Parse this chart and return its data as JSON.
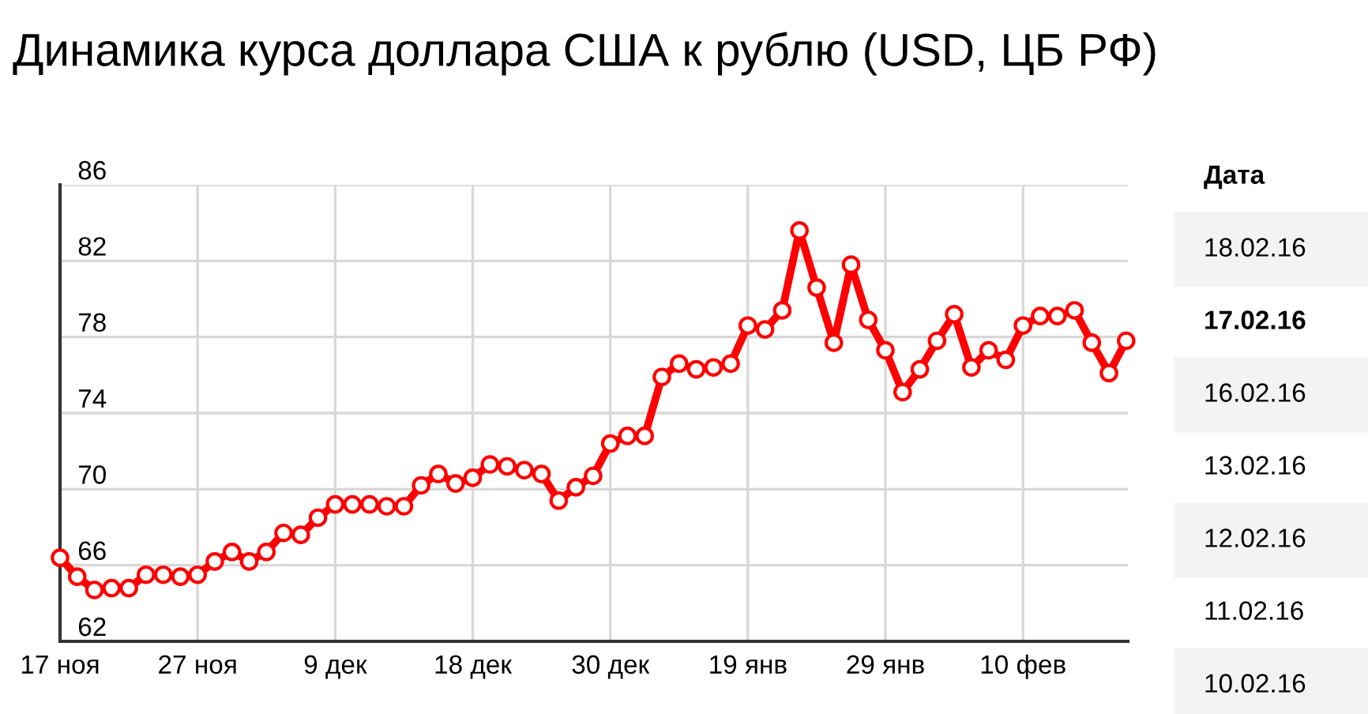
{
  "chart_data": {
    "type": "line",
    "title": "Динамика курса доллара США к рублю (USD, ЦБ РФ)",
    "categories": [
      "17 ноя",
      null,
      null,
      null,
      null,
      null,
      null,
      null,
      "27 ноя",
      null,
      null,
      null,
      null,
      null,
      null,
      null,
      "9 дек",
      null,
      null,
      null,
      null,
      null,
      null,
      null,
      "18 дек",
      null,
      null,
      null,
      null,
      null,
      null,
      null,
      "30 дек",
      null,
      null,
      null,
      null,
      null,
      null,
      null,
      "19 янв",
      null,
      null,
      null,
      null,
      null,
      null,
      null,
      "29 янв",
      null,
      null,
      null,
      null,
      null,
      null,
      null,
      "10 фев",
      null,
      null,
      null,
      null,
      null,
      null
    ],
    "series": [
      {
        "color": "#ff0000",
        "values": [
          66.4,
          65.4,
          64.7,
          64.8,
          64.8,
          65.5,
          65.5,
          65.4,
          65.5,
          66.2,
          66.7,
          66.2,
          66.7,
          67.7,
          67.6,
          68.5,
          69.2,
          69.2,
          69.2,
          69.1,
          69.1,
          70.2,
          70.8,
          70.3,
          70.6,
          71.3,
          71.2,
          71.0,
          70.8,
          69.4,
          70.1,
          70.7,
          72.4,
          72.8,
          72.8,
          75.9,
          76.6,
          76.3,
          76.4,
          76.6,
          78.6,
          78.4,
          79.4,
          83.6,
          80.6,
          77.7,
          81.8,
          78.9,
          77.3,
          75.1,
          76.3,
          77.8,
          79.2,
          76.4,
          77.3,
          76.8,
          78.6,
          79.1,
          79.1,
          79.4,
          77.7,
          76.1,
          77.8
        ]
      }
    ],
    "ylim": [
      62,
      86
    ],
    "yticks": [
      62,
      66,
      70,
      74,
      78,
      82,
      86
    ],
    "grid": true,
    "marker": "circle",
    "line_style": "solid",
    "annotations": [
      "Дата",
      "18.02.16",
      "17.02.16",
      "16.02.16",
      "13.02.16",
      "12.02.16",
      "11.02.16",
      "10.02.16"
    ]
  }
}
